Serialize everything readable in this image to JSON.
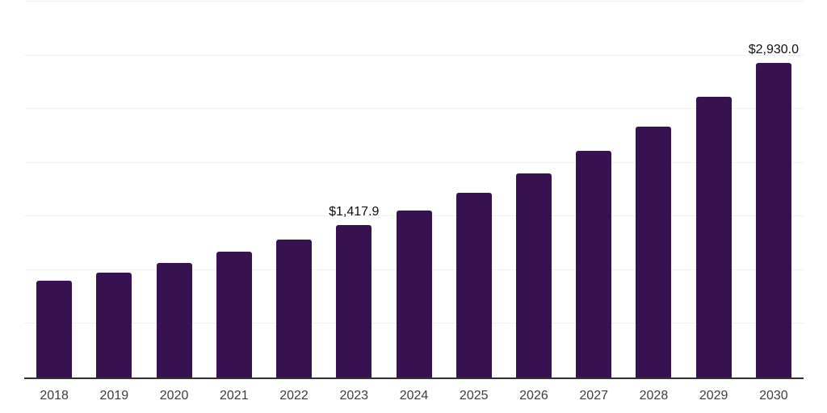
{
  "chart_data": {
    "type": "bar",
    "title": "",
    "xlabel": "",
    "ylabel": "",
    "categories": [
      "2018",
      "2019",
      "2020",
      "2021",
      "2022",
      "2023",
      "2024",
      "2025",
      "2026",
      "2027",
      "2028",
      "2029",
      "2030"
    ],
    "values": [
      900,
      975,
      1065,
      1170,
      1285,
      1417.9,
      1552,
      1717,
      1904,
      2107,
      2339,
      2617,
      2930
    ],
    "bar_labels": [
      "",
      "",
      "",
      "",
      "",
      "$1,417.9",
      "",
      "",
      "",
      "",
      "",
      "",
      "$2,930.0"
    ],
    "ylim": [
      0,
      3500
    ],
    "grid_step": 500,
    "grid": "horizontal-only",
    "legend": "none",
    "colors": {
      "bar": "#381150",
      "gridline": "#f2f2f2",
      "axis_line": "#333333",
      "tick_label": "#3d3d3d",
      "data_label": "#0f0f0f",
      "background": "#ffffff"
    }
  }
}
